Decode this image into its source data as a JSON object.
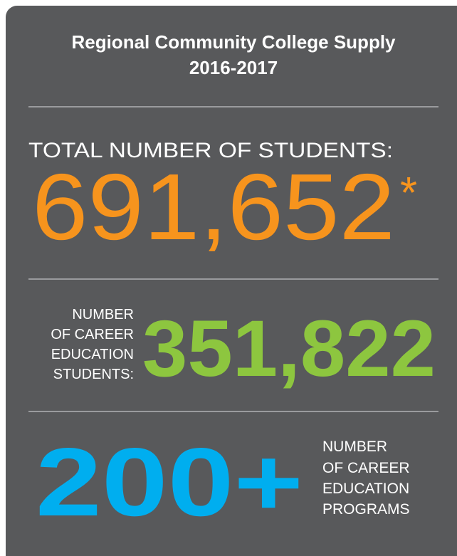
{
  "title": "Regional Community College Supply",
  "subtitle": "2016-2017",
  "stats": [
    {
      "label": "TOTAL NUMBER OF STUDENTS:",
      "value": "691,652",
      "note": "*"
    },
    {
      "label": [
        "NUMBER",
        "OF CAREER",
        "EDUCATION",
        "STUDENTS:"
      ],
      "value": "351,822"
    },
    {
      "value": "200+",
      "label": [
        "NUMBER",
        "OF CAREER",
        "EDUCATION",
        "PROGRAMS"
      ]
    }
  ]
}
